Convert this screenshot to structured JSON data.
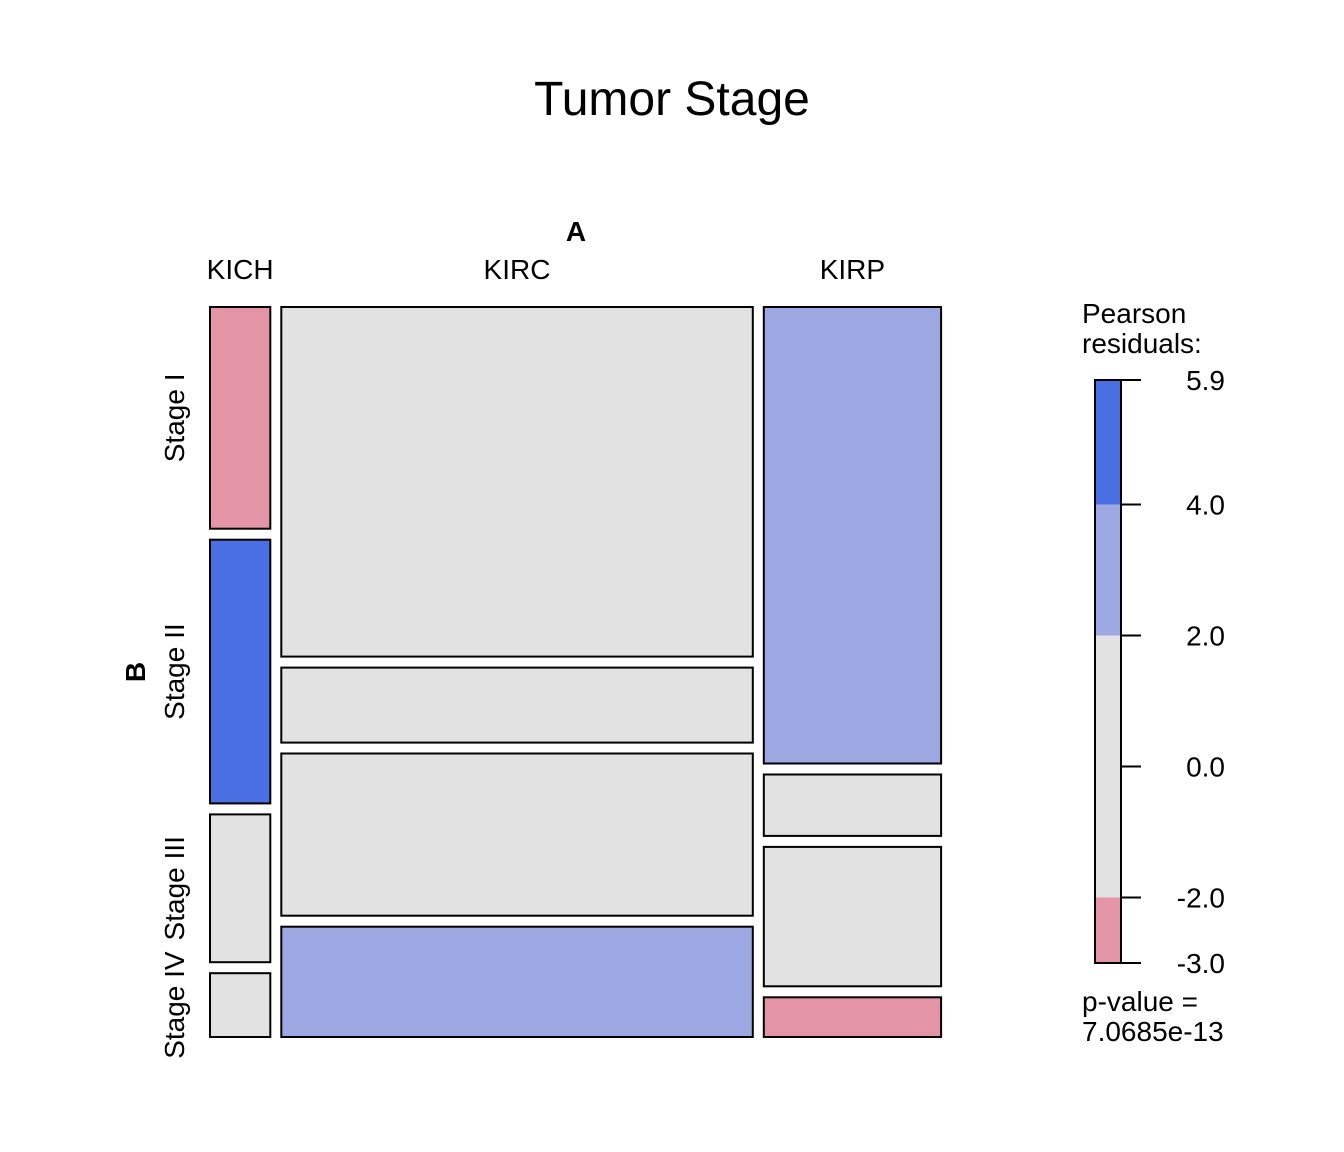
{
  "chart_data": {
    "type": "mosaic",
    "title": "Tumor Stage",
    "x_factor": "A",
    "y_factor": "B",
    "columns": [
      {
        "name": "KICH",
        "proportion": 0.085
      },
      {
        "name": "KIRC",
        "proportion": 0.665
      },
      {
        "name": "KIRP",
        "proportion": 0.25
      }
    ],
    "rows": [
      "Stage I",
      "Stage II",
      "Stage III",
      "Stage IV"
    ],
    "cells": [
      {
        "column": "KICH",
        "row": "Stage I",
        "proportion": 0.306,
        "residual_class": "-3.0 to -2.0",
        "color": "#E495A5"
      },
      {
        "column": "KICH",
        "row": "Stage II",
        "proportion": 0.364,
        "residual_class": "4.0 to 5.9",
        "color": "#4A6FE3"
      },
      {
        "column": "KICH",
        "row": "Stage III",
        "proportion": 0.204,
        "residual_class": "-2.0 to 2.0",
        "color": "#E2E2E2"
      },
      {
        "column": "KICH",
        "row": "Stage IV",
        "proportion": 0.088,
        "residual_class": "-2.0 to 2.0",
        "color": "#E2E2E2"
      },
      {
        "column": "KIRC",
        "row": "Stage I",
        "proportion": 0.485,
        "residual_class": "-2.0 to 2.0",
        "color": "#E2E2E2"
      },
      {
        "column": "KIRC",
        "row": "Stage II",
        "proportion": 0.104,
        "residual_class": "-2.0 to 2.0",
        "color": "#E2E2E2"
      },
      {
        "column": "KIRC",
        "row": "Stage III",
        "proportion": 0.225,
        "residual_class": "-2.0 to 2.0",
        "color": "#E2E2E2"
      },
      {
        "column": "KIRC",
        "row": "Stage IV",
        "proportion": 0.153,
        "residual_class": "2.0 to 4.0",
        "color": "#9DA8E2"
      },
      {
        "column": "KIRP",
        "row": "Stage I",
        "proportion": 0.632,
        "residual_class": "2.0 to 4.0",
        "color": "#9DA8E2"
      },
      {
        "column": "KIRP",
        "row": "Stage II",
        "proportion": 0.085,
        "residual_class": "-2.0 to 2.0",
        "color": "#E2E2E2"
      },
      {
        "column": "KIRP",
        "row": "Stage III",
        "proportion": 0.193,
        "residual_class": "-2.0 to 2.0",
        "color": "#E2E2E2"
      },
      {
        "column": "KIRP",
        "row": "Stage IV",
        "proportion": 0.055,
        "residual_class": "-3.0 to -2.0",
        "color": "#E495A5"
      }
    ],
    "legend": {
      "title_line1": "Pearson",
      "title_line2": "residuals:",
      "range": [
        -3.0,
        5.9
      ],
      "ticks": [
        {
          "value": 5.9,
          "label": "5.9"
        },
        {
          "value": 4.0,
          "label": "4.0"
        },
        {
          "value": 2.0,
          "label": "2.0"
        },
        {
          "value": 0.0,
          "label": "0.0"
        },
        {
          "value": -2.0,
          "label": "-2.0"
        },
        {
          "value": -3.0,
          "label": "-3.0"
        }
      ],
      "bands": [
        {
          "from": 4.0,
          "to": 5.9,
          "color": "#4A6FE3"
        },
        {
          "from": 2.0,
          "to": 4.0,
          "color": "#9DA8E2"
        },
        {
          "from": -2.0,
          "to": 2.0,
          "color": "#E2E2E2"
        },
        {
          "from": -3.0,
          "to": -2.0,
          "color": "#E495A5"
        }
      ],
      "pvalue_line1": "p-value =",
      "pvalue_line2": "7.0685e-13"
    }
  }
}
